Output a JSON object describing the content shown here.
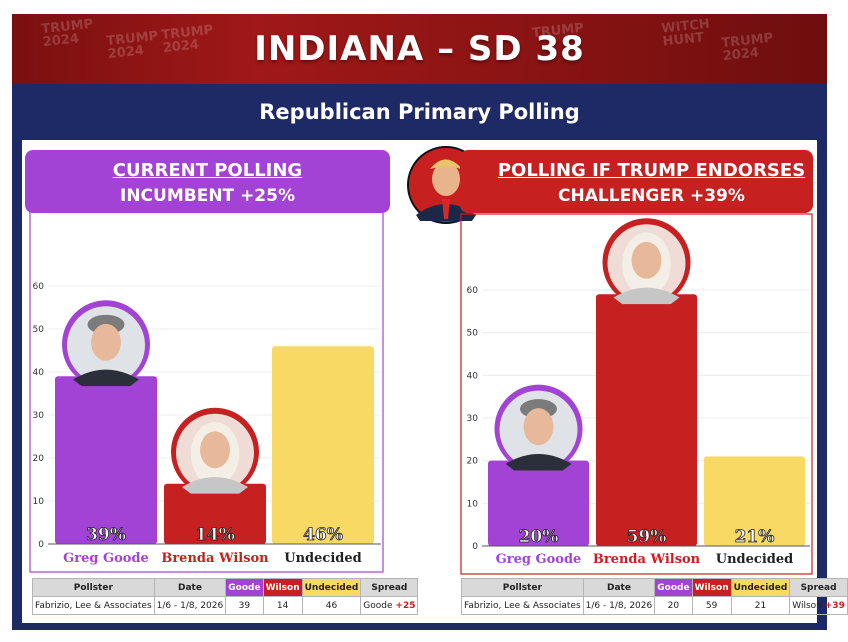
{
  "banner": {
    "title": "INDIANA – SD 38",
    "signs": [
      "TRUMP 2024",
      "TRUMP 2024",
      "TRUMP 2024",
      "TRUMP",
      "WITCH HUNT",
      "TRUMP 2024"
    ]
  },
  "subtitle": "Republican Primary Polling",
  "colors": {
    "goode": "#a343d6",
    "wilson": "#c62020",
    "undecided": "#f8d964",
    "navy": "#1e2a66",
    "banner": "#8d1414"
  },
  "chart_data": [
    {
      "type": "bar",
      "header": {
        "title": "CURRENT POLLING",
        "subtitle": "INCUMBENT +25%",
        "color": "#a343d6",
        "border": "#a343d6"
      },
      "categories": [
        "Greg Goode",
        "Brenda Wilson",
        "Undecided"
      ],
      "values": [
        39,
        14,
        46
      ],
      "value_labels": [
        "39%",
        "14%",
        "46%"
      ],
      "category_colors": [
        "#a343d6",
        "#c62020",
        "#f8d964"
      ],
      "label_colors": [
        "#a343d6",
        "#c62020",
        "#222222"
      ],
      "avatars": [
        "Greg Goode",
        "Brenda Wilson"
      ],
      "yticks": [
        0,
        10,
        20,
        30,
        40,
        50,
        60
      ],
      "ylim": [
        0,
        60
      ],
      "grid": true,
      "table": {
        "headers": [
          "Pollster",
          "Date",
          "Goode",
          "Wilson",
          "Undecided",
          "Spread"
        ],
        "row": [
          "Fabrizio, Lee & Associates",
          "1/6 - 1/8, 2026",
          "39",
          "14",
          "46"
        ],
        "spread_name": "Goode",
        "spread_value": "+25"
      }
    },
    {
      "type": "bar",
      "header": {
        "title": "POLLING IF TRUMP ENDORSES",
        "subtitle": "CHALLENGER +39%",
        "color": "#c62020",
        "border": "#c62020"
      },
      "categories": [
        "Greg Goode",
        "Brenda Wilson",
        "Undecided"
      ],
      "values": [
        20,
        59,
        21
      ],
      "value_labels": [
        "20%",
        "59%",
        "21%"
      ],
      "category_colors": [
        "#a343d6",
        "#c62020",
        "#f8d964"
      ],
      "label_colors": [
        "#a343d6",
        "#c62020",
        "#222222"
      ],
      "avatars": [
        "Greg Goode",
        "Brenda Wilson"
      ],
      "yticks": [
        0,
        10,
        20,
        30,
        40,
        50,
        60
      ],
      "ylim": [
        0,
        60
      ],
      "grid": true,
      "table": {
        "headers": [
          "Pollster",
          "Date",
          "Goode",
          "Wilson",
          "Undecided",
          "Spread"
        ],
        "row": [
          "Fabrizio, Lee & Associates",
          "1/6 - 1/8, 2026",
          "20",
          "59",
          "21"
        ],
        "spread_name": "Wilson",
        "spread_value": "+39"
      }
    }
  ]
}
